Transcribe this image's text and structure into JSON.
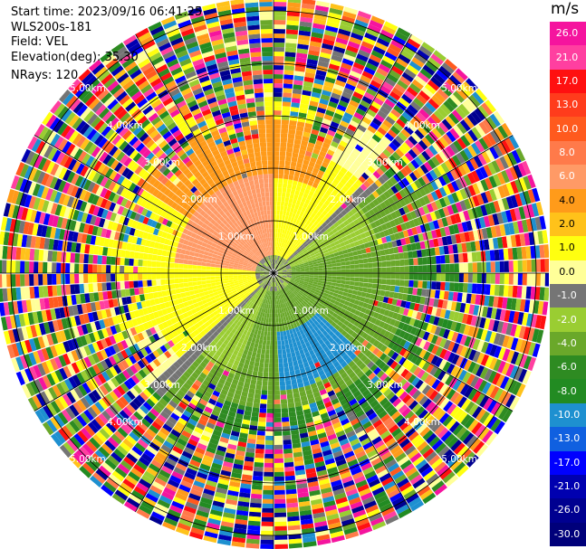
{
  "header": {
    "start_time": "Start time: 2023/09/16 06:41:25",
    "instrument": "WLS200s-181",
    "field": "Field: VEL",
    "elevation": "Elevation(deg): 35.30",
    "nrays": "NRays: 120"
  },
  "colorbar": {
    "unit": "m/s",
    "ticks": [
      "26.0",
      "21.0",
      "17.0",
      "13.0",
      "10.0",
      "8.0",
      "6.0",
      "4.0",
      "2.0",
      "1.0",
      "0.0",
      "-1.0",
      "-2.0",
      "-4.0",
      "-6.0",
      "-8.0",
      "-10.0",
      "-13.0",
      "-17.0",
      "-21.0",
      "-26.0",
      "-30.0"
    ],
    "colors": [
      "#f5149e",
      "#ff3fa0",
      "#ff1010",
      "#ff3c1c",
      "#ff5a1e",
      "#ff7a4a",
      "#ff9a66",
      "#ff9b1a",
      "#ffc21a",
      "#ffff10",
      "#ffff99",
      "#757575",
      "#9acd32",
      "#6aa82a",
      "#2e8b22",
      "#228b22",
      "#1e90d0",
      "#1060e0",
      "#0000ff",
      "#0000b0",
      "#000090",
      "#00007a"
    ]
  },
  "chart_data": {
    "type": "ppi",
    "field": "VEL",
    "nrays": 120,
    "elevation_deg": 35.3,
    "range_ring_labels": [
      "1.00km",
      "2.00km",
      "3.00km",
      "4.00km",
      "5.00km"
    ],
    "colorbar_min": -30.0,
    "colorbar_max": 26.0,
    "unit": "m/s"
  }
}
